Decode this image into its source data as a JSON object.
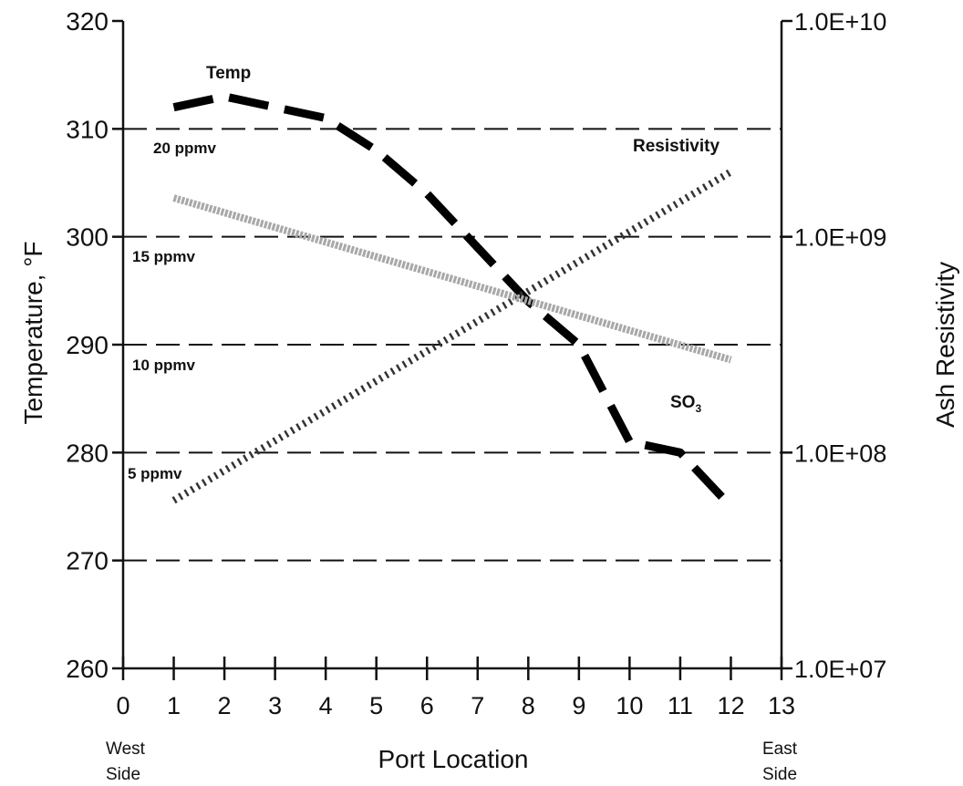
{
  "chart_data": {
    "type": "line",
    "xlabel": "Port Location",
    "ylabel": "Temperature, °F",
    "y2label": "Ash Resistivity",
    "xlim": [
      0,
      13
    ],
    "ylim": [
      260,
      320
    ],
    "y2lim": [
      10000000,
      10000000000
    ],
    "y2_scale": "log",
    "grid": "dashed horizontal lines at 270, 280, 290, 300, 310",
    "x_ticks": [
      "0",
      "1",
      "2",
      "3",
      "4",
      "5",
      "6",
      "7",
      "8",
      "9",
      "10",
      "11",
      "12",
      "13"
    ],
    "y_ticks": [
      "260",
      "270",
      "280",
      "290",
      "300",
      "310",
      "320"
    ],
    "y2_ticks": [
      "1.0E+07",
      "1.0E+08",
      "1.0E+09",
      "1.0E+10"
    ],
    "x_end_labels": {
      "left": [
        "West",
        "Side"
      ],
      "right": [
        "East",
        "Side"
      ]
    },
    "so3_scale_labels": [
      "20 ppmv",
      "15 ppmv",
      "10 ppmv",
      "5 ppmv"
    ],
    "series": [
      {
        "name": "Temp",
        "axis": "left",
        "style": "black long-dash",
        "x": [
          1,
          2,
          3,
          4,
          5,
          6,
          7,
          8,
          9,
          10,
          11,
          12
        ],
        "y": [
          312,
          313,
          312,
          311,
          308,
          304,
          299,
          294,
          290,
          281,
          280,
          275
        ]
      },
      {
        "name": "Resistivity",
        "axis": "right",
        "style": "dark hatched dotted",
        "x": [
          1,
          12
        ],
        "y": [
          60000000,
          2000000000
        ]
      },
      {
        "name": "SO₃",
        "axis": "so3",
        "style": "gray stippled",
        "x": [
          1,
          12
        ],
        "y": [
          16.8,
          9.3
        ]
      }
    ],
    "colors": {
      "temp": "#000000",
      "resistivity": "#333333",
      "so3": "#a8a8a8",
      "grid": "#111111"
    }
  }
}
